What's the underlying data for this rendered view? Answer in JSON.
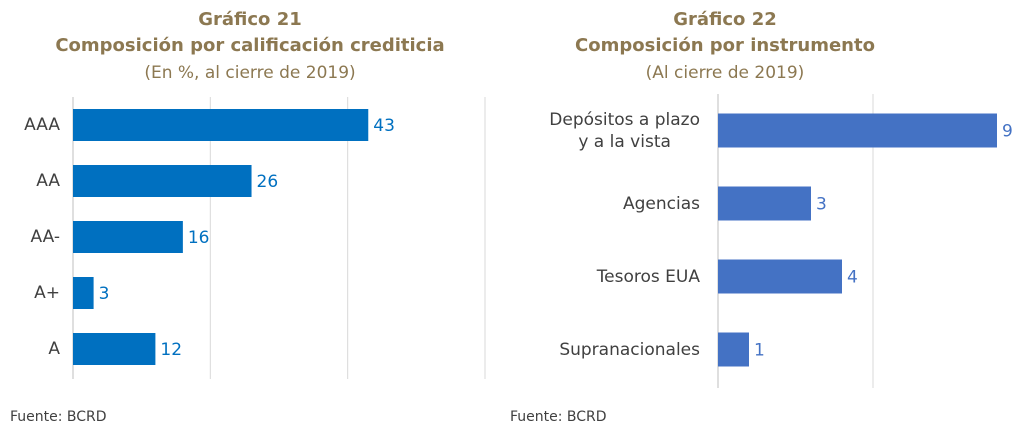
{
  "chart_data": [
    {
      "type": "bar",
      "orientation": "horizontal",
      "title": "Gráfico 21",
      "subtitle": "Composición por calificación crediticia",
      "caption": "(En %, al cierre de 2019)",
      "source": "Fuente: BCRD",
      "categories": [
        "AAA",
        "AA",
        "AA-",
        "A+",
        "A"
      ],
      "values": [
        43,
        26,
        16,
        3,
        12
      ],
      "color": "#0070c0",
      "xlim": [
        0,
        60
      ],
      "xticks": [
        0,
        20,
        40,
        60
      ],
      "grid": true
    },
    {
      "type": "bar",
      "orientation": "horizontal",
      "title": "Gráfico 22",
      "subtitle": "Composición por instrumento",
      "caption": "(Al cierre de 2019)",
      "source": "Fuente: BCRD",
      "categories": [
        "Depósitos a plazo\ny a la vista",
        "Agencias",
        "Tesoros EUA",
        "Supranacionales"
      ],
      "values": [
        9,
        3,
        4,
        1
      ],
      "color": "#4472c4",
      "xlim": [
        0,
        9
      ],
      "xticks": [
        0,
        5
      ],
      "grid": true
    }
  ]
}
